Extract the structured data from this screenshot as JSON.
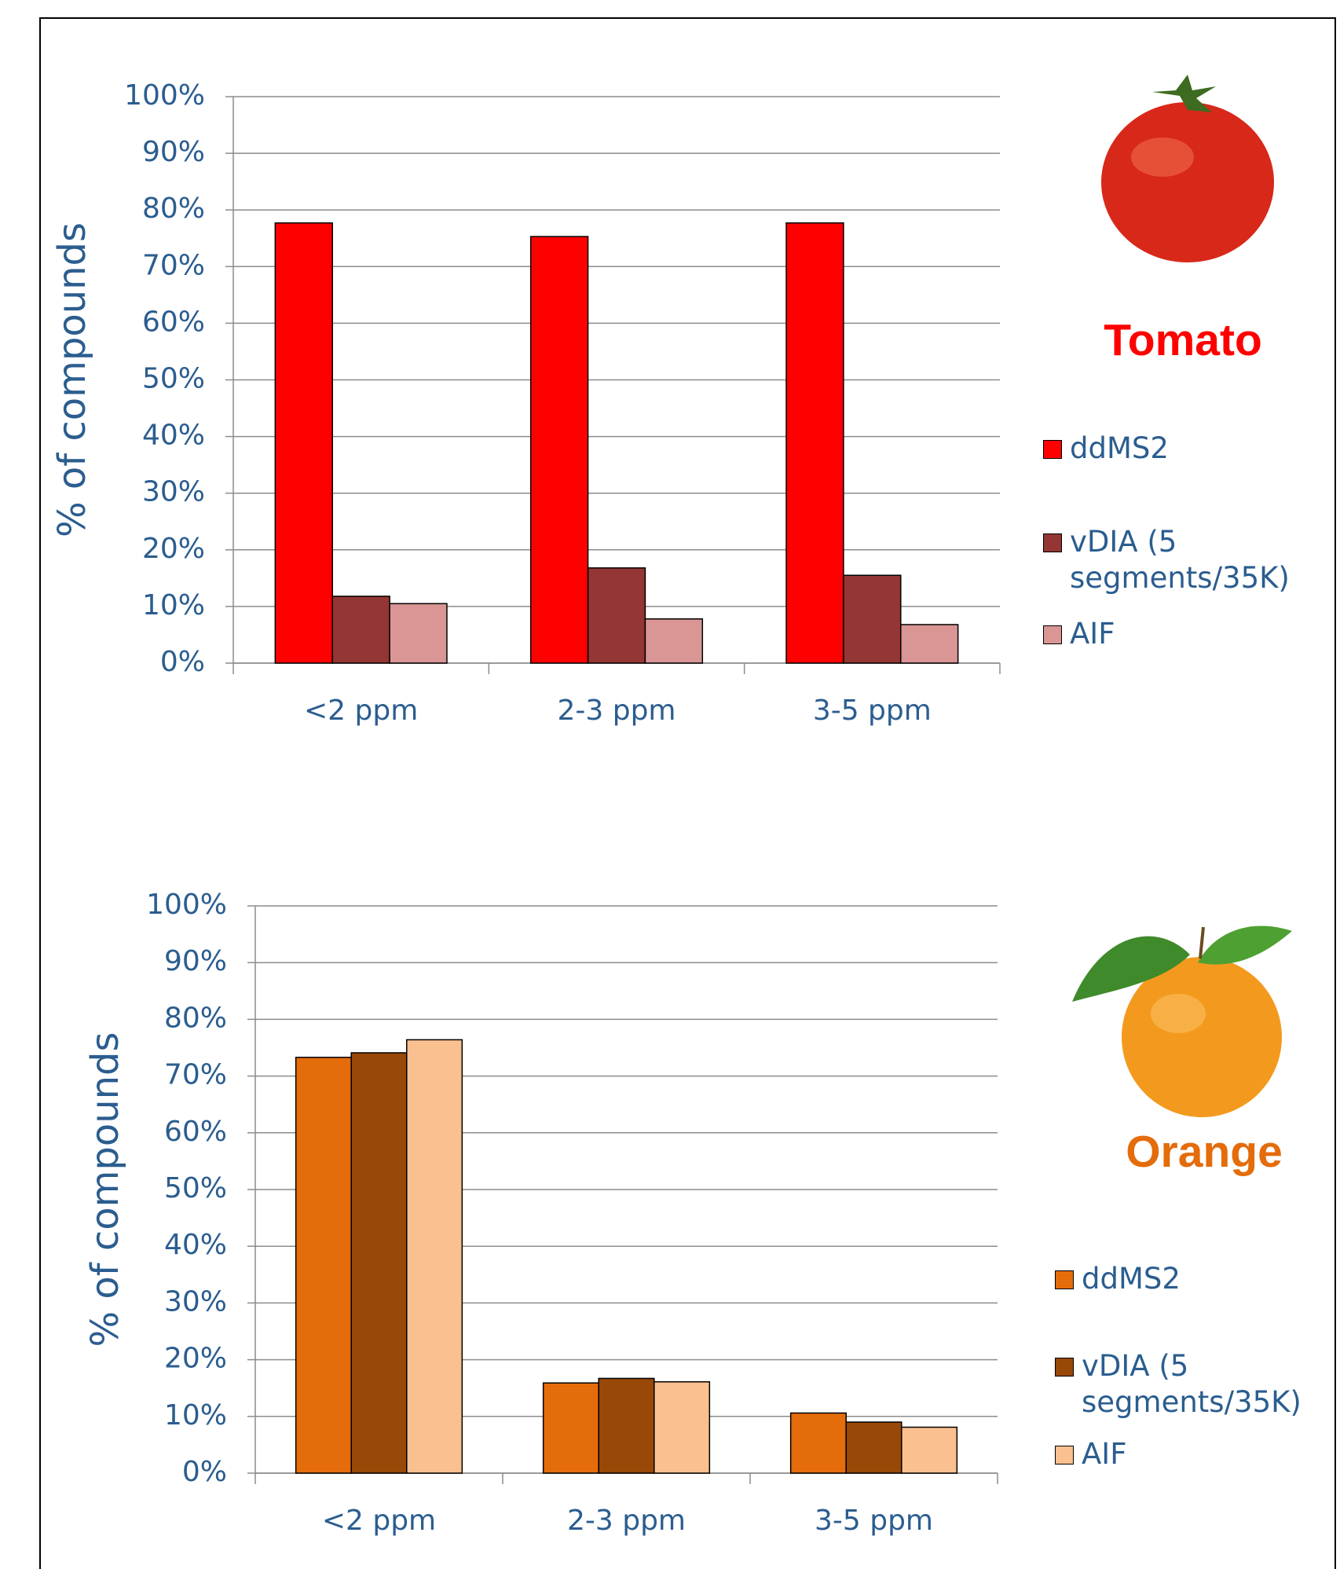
{
  "chart_data": [
    {
      "type": "bar",
      "title": "Tomato",
      "title_color": "#ff0000",
      "ylabel": "% of compounds",
      "categories": [
        "<2 ppm",
        "2-3 ppm",
        "3-5 ppm"
      ],
      "series": [
        {
          "name": "ddMS2",
          "color": "#ff0000",
          "values": [
            77.7,
            75.3,
            77.7
          ]
        },
        {
          "name": "vDIA (5 segments/35K)",
          "color": "#943634",
          "values": [
            11.8,
            16.8,
            15.5
          ]
        },
        {
          "name": "AIF",
          "color": "#d99694",
          "values": [
            10.5,
            7.8,
            6.8
          ]
        }
      ],
      "ylim": [
        0,
        100
      ],
      "yticks": [
        {
          "value": 0,
          "label": "0%"
        },
        {
          "value": 10,
          "label": "10%"
        },
        {
          "value": 20,
          "label": "20%"
        },
        {
          "value": 30,
          "label": "30%"
        },
        {
          "value": 40,
          "label": "40%"
        },
        {
          "value": 50,
          "label": "50%"
        },
        {
          "value": 60,
          "label": "60%"
        },
        {
          "value": 70,
          "label": "70%"
        },
        {
          "value": 80,
          "label": "80%"
        },
        {
          "value": 90,
          "label": "90%"
        },
        {
          "value": 100,
          "label": "100%"
        }
      ],
      "grid": true,
      "legend": "right"
    },
    {
      "type": "bar",
      "title": "Orange",
      "title_color": "#e46c0a",
      "ylabel": "% of compounds",
      "categories": [
        "<2 ppm",
        "2-3 ppm",
        "3-5 ppm"
      ],
      "series": [
        {
          "name": "ddMS2",
          "color": "#e46c0a",
          "values": [
            73.3,
            15.9,
            10.6
          ]
        },
        {
          "name": "vDIA (5 segments/35K)",
          "color": "#984807",
          "values": [
            74.1,
            16.7,
            9.0
          ]
        },
        {
          "name": "AIF",
          "color": "#fac090",
          "values": [
            76.4,
            16.1,
            8.1
          ]
        }
      ],
      "ylim": [
        0,
        100
      ],
      "yticks": [
        {
          "value": 0,
          "label": "0%"
        },
        {
          "value": 10,
          "label": "10%"
        },
        {
          "value": 20,
          "label": "20%"
        },
        {
          "value": 30,
          "label": "30%"
        },
        {
          "value": 40,
          "label": "40%"
        },
        {
          "value": 50,
          "label": "50%"
        },
        {
          "value": 60,
          "label": "60%"
        },
        {
          "value": 70,
          "label": "70%"
        },
        {
          "value": 80,
          "label": "80%"
        },
        {
          "value": 90,
          "label": "90%"
        },
        {
          "value": 100,
          "label": "100%"
        }
      ],
      "grid": true,
      "legend": "right"
    }
  ]
}
